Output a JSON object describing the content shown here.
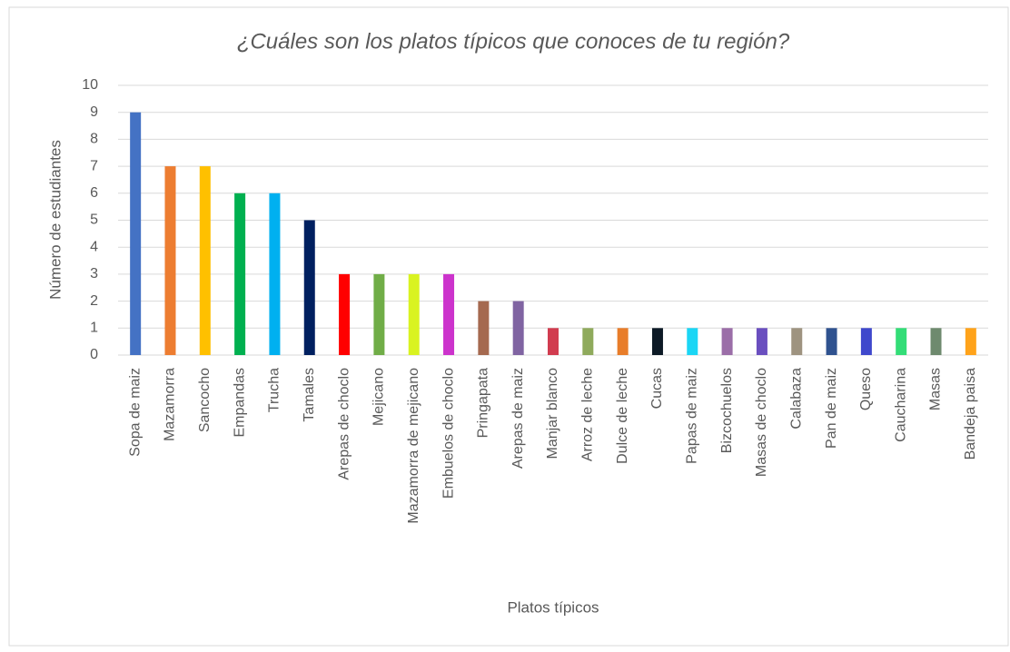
{
  "chart_data": {
    "type": "bar",
    "title": "¿Cuáles son los platos típicos que conoces de tu región?",
    "xlabel": "Platos típicos",
    "ylabel": "Número de estudiantes",
    "categories": [
      "Sopa de maiz",
      "Mazamorra",
      "Sancocho",
      "Empandas",
      "Trucha",
      "Tamales",
      "Arepas de choclo",
      "Mejicano",
      "Mazamorra de mejicano",
      "Embuelos de choclo",
      "Pringapata",
      "Arepas de maiz",
      "Manjar blanco",
      "Arroz de leche",
      "Dulce de leche",
      "Cucas",
      "Papas de maiz",
      "Bizcochuelos",
      "Masas de choclo",
      "Calabaza",
      "Pan de maiz",
      "Queso",
      "Caucharina",
      "Masas",
      "Bandeja paisa"
    ],
    "values": [
      9,
      7,
      7,
      6,
      6,
      5,
      3,
      3,
      3,
      3,
      2,
      2,
      1,
      1,
      1,
      1,
      1,
      1,
      1,
      1,
      1,
      1,
      1,
      1,
      1
    ],
    "colors": [
      "#4472c4",
      "#ed7d31",
      "#ffc000",
      "#00b050",
      "#00b0f0",
      "#002060",
      "#ff0000",
      "#70ad47",
      "#d9f321",
      "#cc33cc",
      "#a5694f",
      "#8064a2",
      "#d13c4f",
      "#8faa5c",
      "#e87d2a",
      "#0d1a26",
      "#1ad6f5",
      "#9b6ea8",
      "#6a4fbf",
      "#9e9380",
      "#2f528f",
      "#3f48cc",
      "#33dd77",
      "#6e8a6e",
      "#ffa31a"
    ],
    "ylim": [
      0,
      10
    ],
    "yticks": [
      0,
      1,
      2,
      3,
      4,
      5,
      6,
      7,
      8,
      9,
      10
    ],
    "grid": true
  }
}
